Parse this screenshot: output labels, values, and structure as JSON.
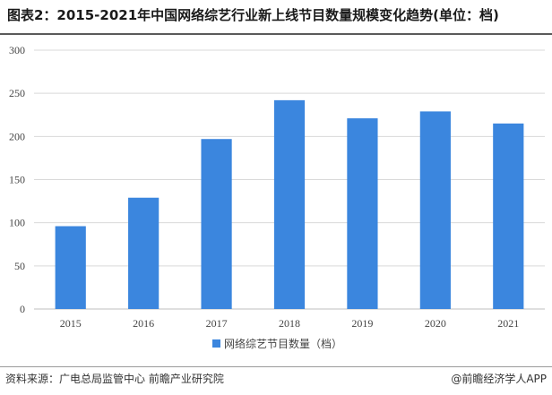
{
  "title": "图表2：2015-2021年中国网络综艺行业新上线节目数量规模变化趋势(单位：档)",
  "footer": {
    "source": "资料来源：广电总局监管中心 前瞻产业研究院",
    "credit": "@前瞻经济学人APP"
  },
  "colors": {
    "bar": "#3b86de",
    "grid": "#d9d9d9",
    "axis": "#bfbfbf"
  },
  "chart_data": {
    "type": "bar",
    "categories": [
      "2015",
      "2016",
      "2017",
      "2018",
      "2019",
      "2020",
      "2021"
    ],
    "series": [
      {
        "name": "网络综艺节目数量（档）",
        "values": [
          96,
          129,
          197,
          242,
          221,
          229,
          215
        ]
      }
    ],
    "ylim": [
      0,
      300
    ],
    "yticks": [
      0,
      50,
      100,
      150,
      200,
      250,
      300
    ],
    "grid": true,
    "legend": "bottom-center"
  }
}
